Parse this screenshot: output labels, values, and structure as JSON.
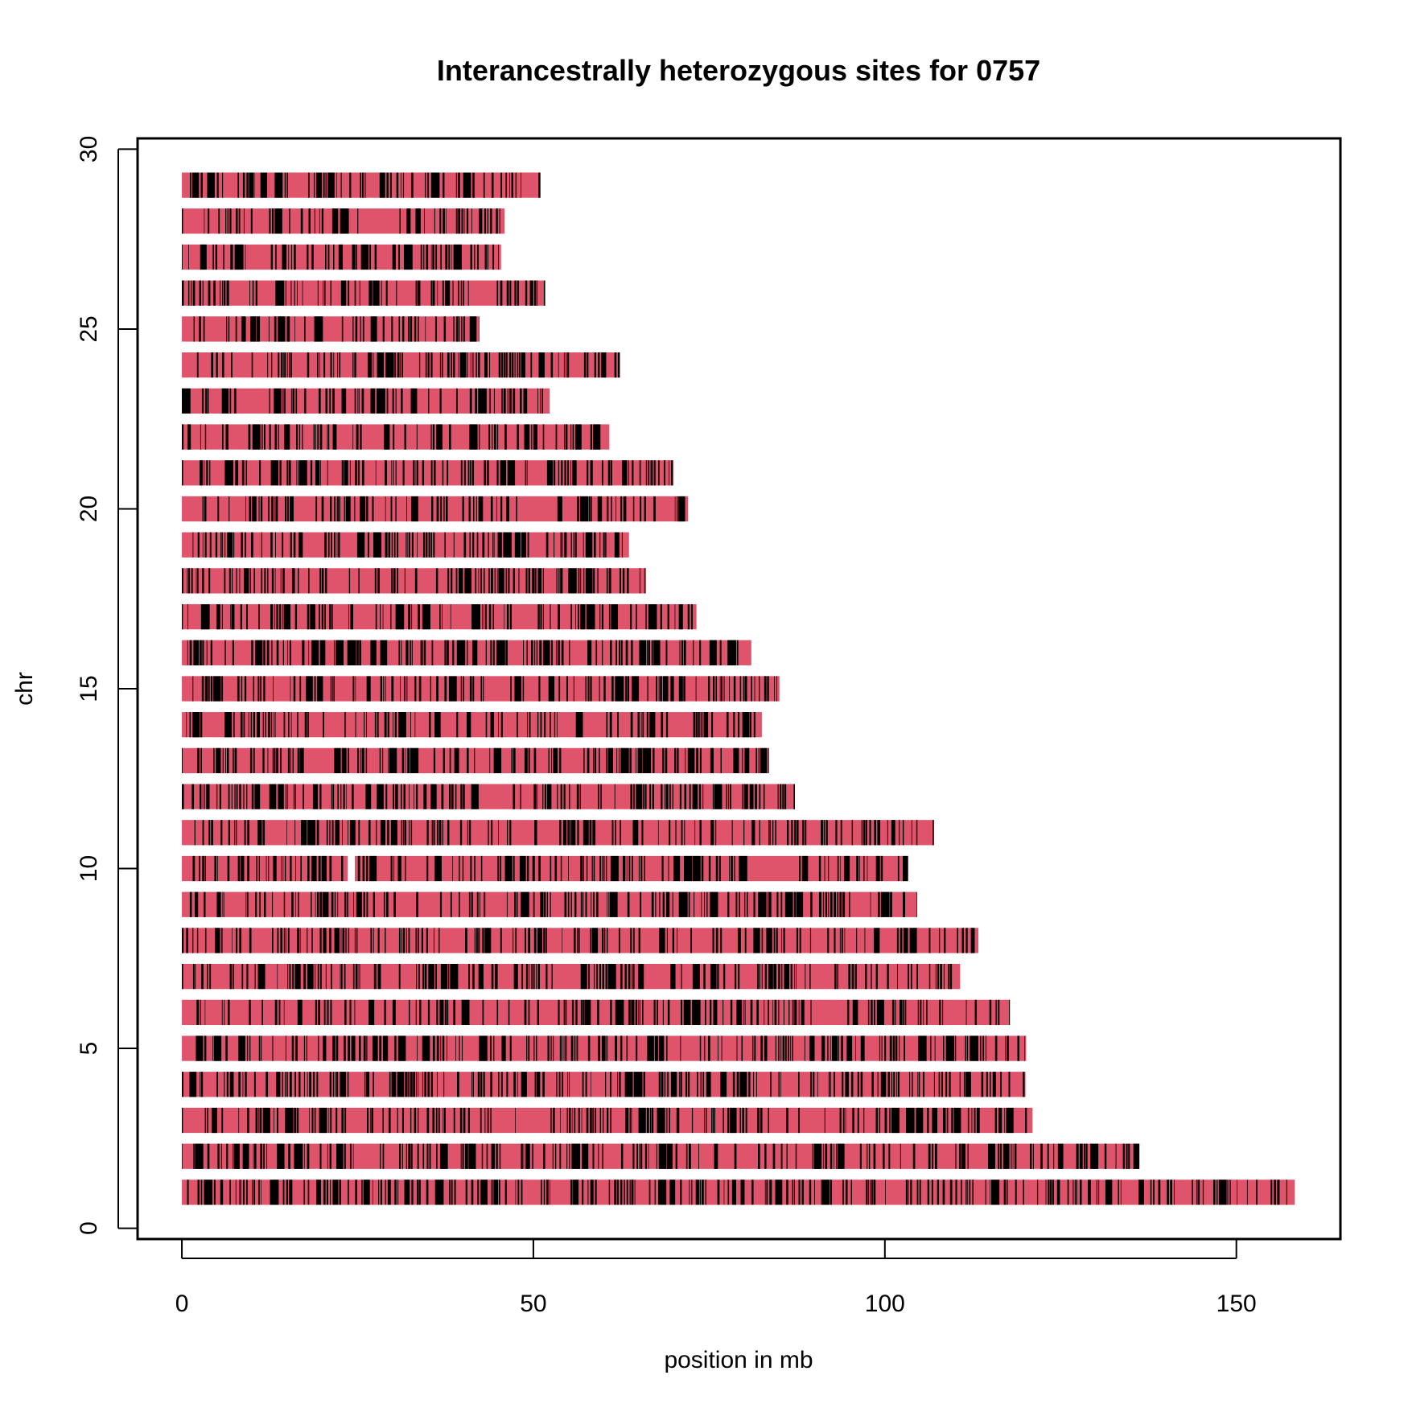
{
  "chart_data": {
    "type": "bar",
    "orientation": "horizontal",
    "title": "Interancestrally heterozygous sites for 0757",
    "xlabel": "position in mb",
    "ylabel": "chr",
    "xlim": [
      -6.3,
      164.8
    ],
    "ylim": [
      -0.3,
      30.3
    ],
    "xticks": [
      0,
      50,
      100,
      150
    ],
    "yticks": [
      0,
      5,
      10,
      15,
      20,
      25,
      30
    ],
    "grid": false,
    "legend": "none",
    "colors": {
      "ancestry_a": "#000000",
      "ancestry_b": "#DF536B"
    },
    "chromosomes": [
      {
        "chr": 1,
        "end": 158.3
      },
      {
        "chr": 2,
        "end": 136.2
      },
      {
        "chr": 3,
        "end": 121.0
      },
      {
        "chr": 4,
        "end": 120.0
      },
      {
        "chr": 5,
        "end": 120.1
      },
      {
        "chr": 6,
        "end": 117.8
      },
      {
        "chr": 7,
        "end": 110.7
      },
      {
        "chr": 8,
        "end": 113.3
      },
      {
        "chr": 9,
        "end": 104.6
      },
      {
        "chr": 10,
        "end": 103.3,
        "gap": [
          23.6,
          24.6
        ]
      },
      {
        "chr": 11,
        "end": 107.0
      },
      {
        "chr": 12,
        "end": 87.2
      },
      {
        "chr": 13,
        "end": 83.5
      },
      {
        "chr": 14,
        "end": 82.5
      },
      {
        "chr": 15,
        "end": 85.0
      },
      {
        "chr": 16,
        "end": 81.0
      },
      {
        "chr": 17,
        "end": 73.2
      },
      {
        "chr": 18,
        "end": 66.0
      },
      {
        "chr": 19,
        "end": 63.6
      },
      {
        "chr": 20,
        "end": 72.0
      },
      {
        "chr": 21,
        "end": 69.9
      },
      {
        "chr": 22,
        "end": 60.8
      },
      {
        "chr": 23,
        "end": 52.3
      },
      {
        "chr": 24,
        "end": 62.3
      },
      {
        "chr": 25,
        "end": 42.3
      },
      {
        "chr": 26,
        "end": 51.7
      },
      {
        "chr": 27,
        "end": 45.4
      },
      {
        "chr": 28,
        "end": 45.9
      },
      {
        "chr": 29,
        "end": 51.0
      }
    ]
  }
}
